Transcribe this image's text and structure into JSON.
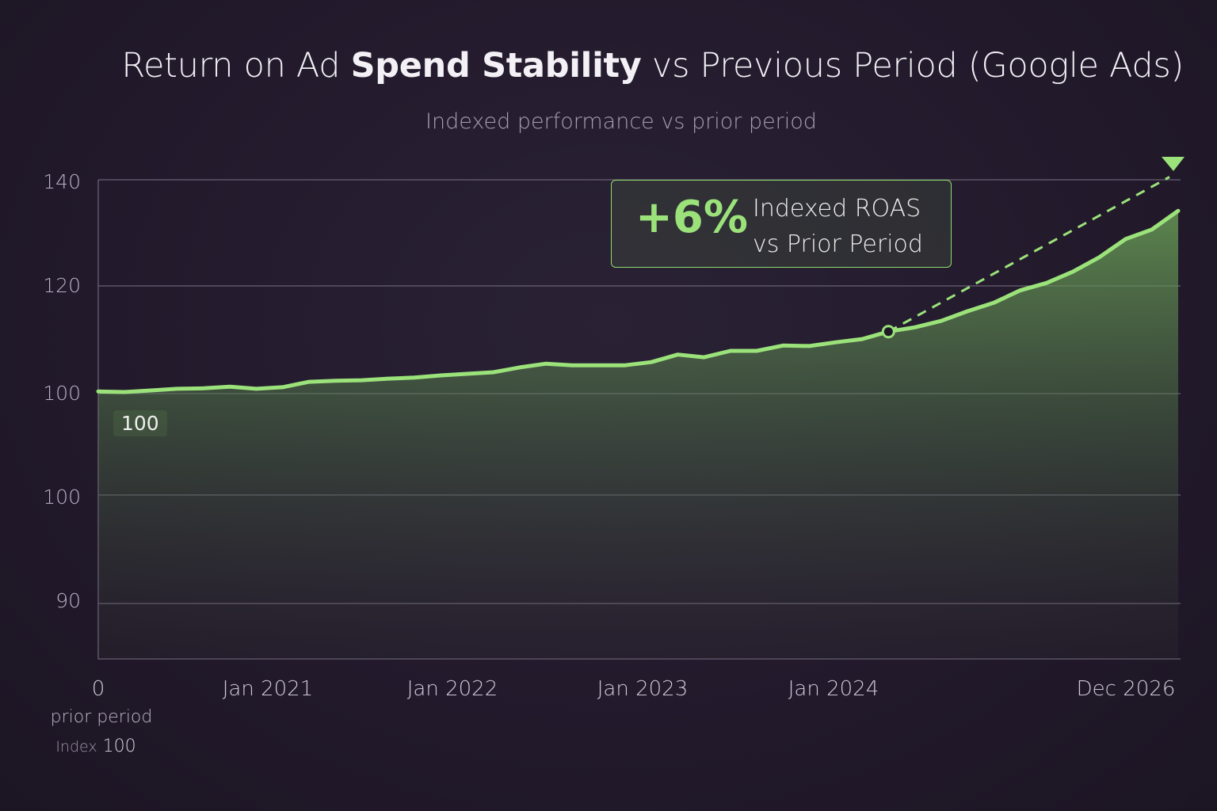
{
  "title": {
    "pre": "Return on Ad ",
    "bold": "Spend Stability",
    "post": " vs Previous Period (Google Ads)"
  },
  "subtitle": "Indexed performance vs prior period",
  "annotation": {
    "value": "+6%",
    "line1": "Indexed ROAS",
    "line2": "vs Prior Period"
  },
  "baseline_label": "100",
  "x_sub": {
    "line1": "prior period",
    "index_word": "Index",
    "index_value": "100"
  },
  "colors": {
    "line": "#9be27a",
    "background": "#231b2c"
  },
  "chart_data": {
    "type": "area",
    "title": "Return on Ad Spend Stability vs Previous Period (Google Ads)",
    "ylabel": "Indexed ROAS",
    "y_ticks": [
      "140",
      "120",
      "100",
      "100",
      "90"
    ],
    "x_ticks": [
      "0",
      "Jan 2021",
      "Jan 2022",
      "Jan 2023",
      "Jan 2024",
      "Dec 2026"
    ],
    "ylim": [
      85,
      140
    ],
    "grid": true,
    "series": [
      {
        "name": "Indexed ROAS",
        "values": [
          100.4,
          100.3,
          100.6,
          100.9,
          101.0,
          101.3,
          100.9,
          101.2,
          102.2,
          102.4,
          102.5,
          102.8,
          103.0,
          103.4,
          103.7,
          104.0,
          104.9,
          105.6,
          105.3,
          105.3,
          105.3,
          105.9,
          107.3,
          106.8,
          108.0,
          108.0,
          109.0,
          108.9,
          109.6,
          110.2,
          111.6,
          112.4,
          113.6,
          115.4,
          117.0,
          119.3,
          120.7,
          122.8,
          125.5,
          128.9,
          130.7,
          134.2
        ]
      }
    ],
    "trend": {
      "from_index": 30,
      "to_value": 142
    }
  }
}
